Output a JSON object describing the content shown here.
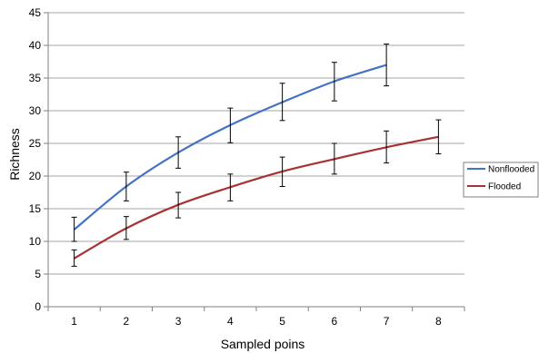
{
  "chart_data": {
    "type": "line",
    "title": "",
    "xlabel": "Sampled poins",
    "ylabel": "Richness",
    "categories": [
      "1",
      "2",
      "3",
      "4",
      "5",
      "6",
      "7",
      "8"
    ],
    "ylim": [
      0,
      45
    ],
    "yticks": [
      "0",
      "5",
      "10",
      "15",
      "20",
      "25",
      "30",
      "35",
      "40",
      "45"
    ],
    "grid": true,
    "legend_position": "right",
    "error_bars": true,
    "series": [
      {
        "name": "Nonflooded",
        "color": "#4472C4",
        "values": [
          11.8,
          18.4,
          23.6,
          27.8,
          31.3,
          34.5,
          37.0,
          null
        ],
        "err_low": [
          10.0,
          16.2,
          21.2,
          25.1,
          28.5,
          31.5,
          33.8,
          null
        ],
        "err_high": [
          13.7,
          20.6,
          26.0,
          30.4,
          34.2,
          37.4,
          40.2,
          null
        ]
      },
      {
        "name": "Flooded",
        "color": "#A83232",
        "values": [
          7.4,
          12.0,
          15.6,
          18.3,
          20.7,
          22.6,
          24.4,
          26.0
        ],
        "err_low": [
          6.2,
          10.3,
          13.6,
          16.2,
          18.4,
          20.3,
          22.0,
          23.4
        ],
        "err_high": [
          8.7,
          13.8,
          17.5,
          20.3,
          22.9,
          25.0,
          26.9,
          28.6
        ]
      }
    ]
  }
}
